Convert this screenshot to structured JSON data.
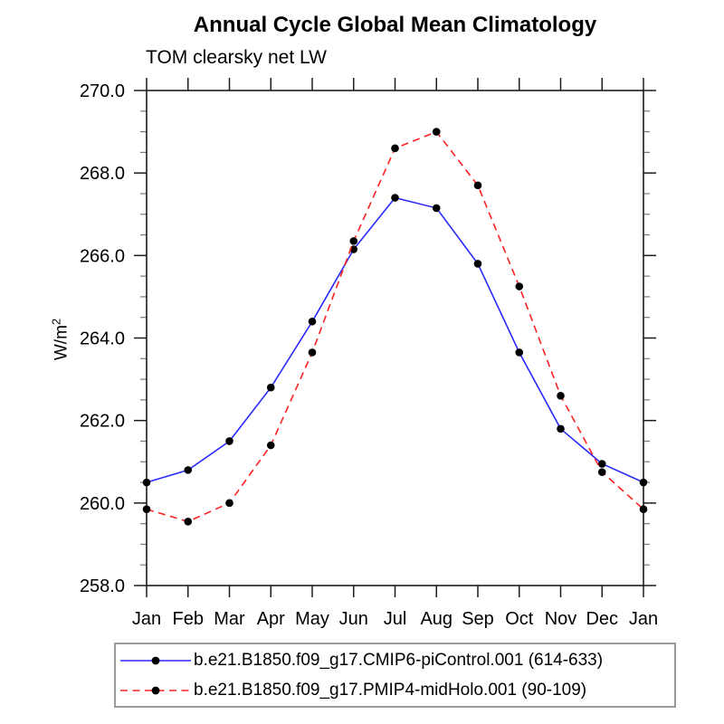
{
  "header": {
    "title": "Annual Cycle Global Mean Climatology",
    "subtitle": "TOM clearsky net LW"
  },
  "chart_data": {
    "type": "line",
    "title": "Annual Cycle Global Mean Climatology",
    "subtitle": "TOM clearsky net LW",
    "ylabel": "W/m²",
    "ylabel_base": "W/m",
    "ylabel_sup": "2",
    "categories": [
      "Jan",
      "Feb",
      "Mar",
      "Apr",
      "May",
      "Jun",
      "Jul",
      "Aug",
      "Sep",
      "Oct",
      "Nov",
      "Dec",
      "Jan"
    ],
    "ylim": [
      258.0,
      270.0
    ],
    "ytick_major_step": 2.0,
    "ytick_minor_step": 0.5,
    "ytick_labels": [
      "258.0",
      "260.0",
      "262.0",
      "264.0",
      "266.0",
      "268.0",
      "270.0"
    ],
    "grid": false,
    "legend_position": "bottom",
    "axis_color": "#1c1c1c",
    "minor_tick_color": "#777777",
    "marker_color": "#000000",
    "series": [
      {
        "name": "b.e21.B1850.f09_g17.CMIP6-piControl.001 (614-633)",
        "color": "#2a2aff",
        "style": "solid",
        "marker": "dot",
        "values": [
          260.5,
          260.8,
          261.5,
          262.8,
          264.4,
          266.15,
          267.4,
          267.15,
          265.8,
          263.65,
          261.8,
          260.95,
          260.5
        ]
      },
      {
        "name": "b.e21.B1850.f09_g17.PMIP4-midHolo.001 (90-109)",
        "color": "#ff2020",
        "style": "dashed",
        "marker": "dot",
        "values": [
          259.85,
          259.55,
          260.0,
          261.4,
          263.65,
          266.35,
          268.6,
          269.0,
          267.7,
          265.25,
          262.6,
          260.75,
          259.85
        ]
      }
    ]
  },
  "legend": {
    "items": [
      {
        "label": "b.e21.B1850.f09_g17.CMIP6-piControl.001 (614-633)"
      },
      {
        "label": "b.e21.B1850.f09_g17.PMIP4-midHolo.001 (90-109)"
      }
    ]
  }
}
